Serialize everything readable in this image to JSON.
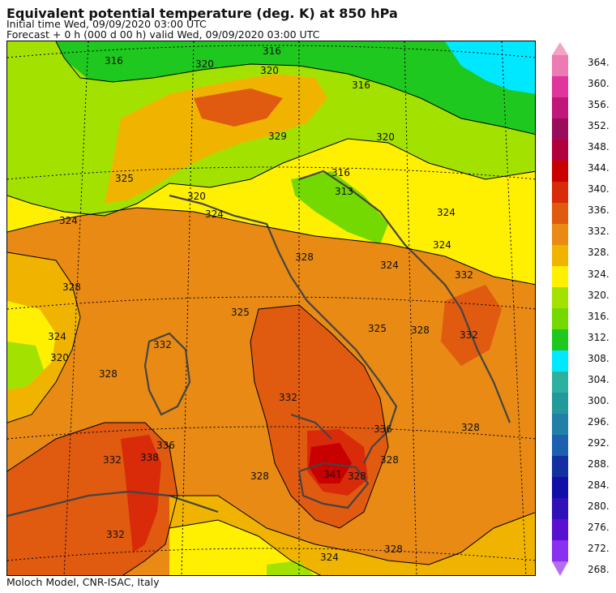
{
  "header": {
    "title": "Equivalent potential temperature (deg. K) at 850 hPa",
    "initial": "Initial time  Wed, 09/09/2020  03:00 UTC",
    "forecast": "Forecast  +   0 h  (000 d 00 h)  valid Wed, 09/09/2020 03:00 UTC"
  },
  "credit": "Moloch Model, CNR-ISAC, Italy",
  "colorbar": {
    "labels": [
      "364.",
      "360.",
      "356.",
      "352.",
      "348.",
      "344.",
      "340.",
      "336.",
      "332.",
      "328.",
      "324.",
      "320.",
      "316.",
      "312.",
      "308.",
      "304.",
      "300.",
      "296.",
      "292.",
      "288.",
      "284.",
      "280.",
      "276.",
      "272.",
      "268."
    ],
    "colors": [
      "#f4a3c4",
      "#ec7ab3",
      "#e0359a",
      "#c01878",
      "#9c0c5c",
      "#b2003c",
      "#c80000",
      "#d92a0a",
      "#e05a10",
      "#e88a14",
      "#f0b400",
      "#ffef00",
      "#a3e200",
      "#73d900",
      "#1ec81e",
      "#00e8ff",
      "#2eb0a0",
      "#229a9a",
      "#2080a8",
      "#1d60b0",
      "#1430a0",
      "#1010a8",
      "#3010b8",
      "#5a10d0",
      "#8a30f0",
      "#b46cf0"
    ]
  },
  "contour_labels": [
    "316",
    "320",
    "316",
    "320",
    "316",
    "316",
    "320",
    "325",
    "329",
    "324",
    "320",
    "324",
    "313",
    "324",
    "328",
    "324",
    "324",
    "332",
    "328",
    "325",
    "325",
    "332",
    "328",
    "324",
    "320",
    "328",
    "332",
    "332",
    "336",
    "332",
    "338",
    "341",
    "328",
    "328",
    "336",
    "332",
    "328",
    "324",
    "328",
    "328"
  ]
}
